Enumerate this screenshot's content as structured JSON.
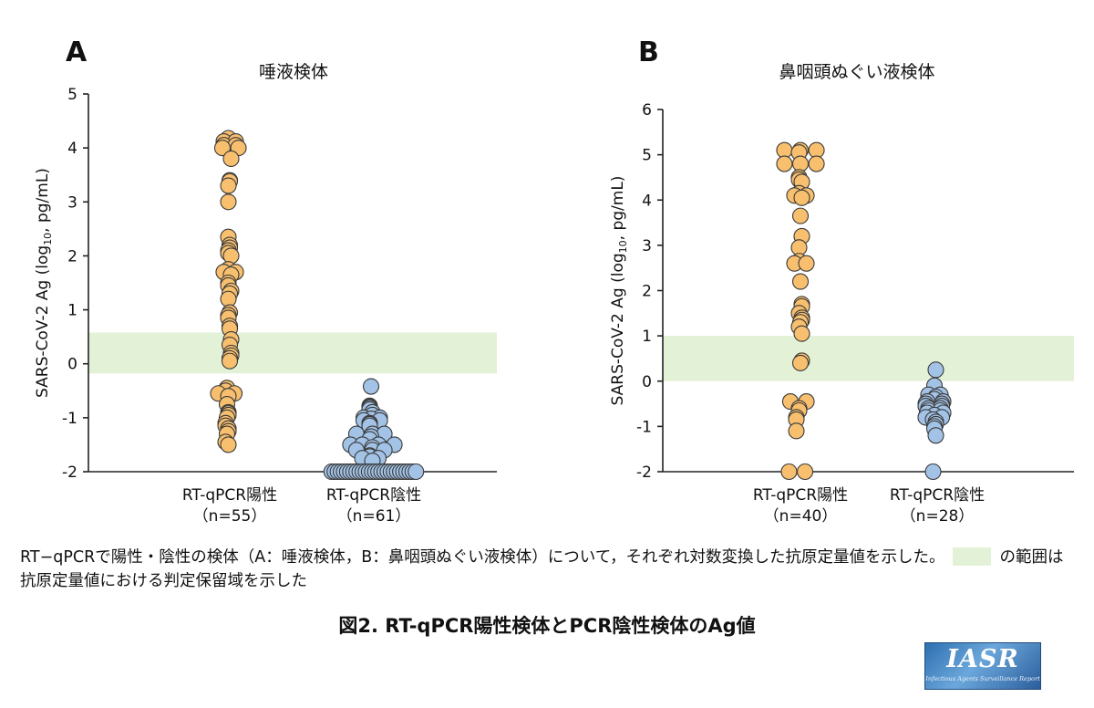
{
  "colors": {
    "positive": "#f7bf6e",
    "negative": "#a3c3e6",
    "border": "#3a3a3a",
    "band": "#e3f1d6"
  },
  "chart_data": [
    {
      "type": "scatter",
      "panel_label": "A",
      "title": "唾液検体",
      "ylabel": "SARS-CoV-2 Ag (log10, pg/mL)",
      "ylim": [
        -2,
        5
      ],
      "yticks": [
        "-2",
        "-1",
        "0",
        "1",
        "2",
        "3",
        "4",
        "5"
      ],
      "band": [
        -0.18,
        0.58
      ],
      "categories": [
        "RT-qPCR陽性",
        "RT-qPCR陰性"
      ],
      "category_counts": [
        "（n=55）",
        "（n=61）"
      ],
      "series": [
        {
          "category": "RT-qPCR陽性",
          "values": [
            4.18,
            4.12,
            4.12,
            4.05,
            4.05,
            4.0,
            4.0,
            3.8,
            3.4,
            3.38,
            3.3,
            3.0,
            2.35,
            2.2,
            2.15,
            2.1,
            2.05,
            2.0,
            1.75,
            1.7,
            1.7,
            1.65,
            1.5,
            1.45,
            1.35,
            1.3,
            1.2,
            0.95,
            0.9,
            0.85,
            0.7,
            0.65,
            0.45,
            0.35,
            0.2,
            0.15,
            0.1,
            0.05,
            -0.45,
            -0.5,
            -0.55,
            -0.55,
            -0.6,
            -0.75,
            -0.9,
            -0.92,
            -0.95,
            -1.0,
            -1.1,
            -1.15,
            -1.2,
            -1.25,
            -1.3,
            -1.45,
            -1.5
          ]
        },
        {
          "category": "RT-qPCR陰性",
          "values": [
            -0.42,
            -0.78,
            -0.8,
            -0.82,
            -0.85,
            -0.9,
            -0.95,
            -1.0,
            -1.0,
            -1.02,
            -1.05,
            -1.05,
            -1.1,
            -1.12,
            -1.15,
            -1.3,
            -1.3,
            -1.3,
            -1.35,
            -1.4,
            -1.5,
            -1.5,
            -1.5,
            -1.5,
            -1.55,
            -1.6,
            -1.6,
            -1.6,
            -1.7,
            -1.72,
            -1.75,
            -1.75,
            -1.8,
            -2.0,
            -2.0,
            -2.0,
            -2.0,
            -2.0,
            -2.0,
            -2.0,
            -2.0,
            -2.0,
            -2.0,
            -2.0,
            -2.0,
            -2.0,
            -2.0,
            -2.0,
            -2.0,
            -2.0,
            -2.0,
            -2.0,
            -2.0,
            -2.0,
            -2.0,
            -2.0,
            -2.0,
            -2.0,
            -2.0,
            -2.0,
            -2.0
          ]
        }
      ]
    },
    {
      "type": "scatter",
      "panel_label": "B",
      "title": "鼻咽頭ぬぐい液検体",
      "ylabel": "SARS-CoV-2 Ag (log10, pg/mL)",
      "ylim": [
        -2,
        6
      ],
      "yticks": [
        "-2",
        "-1",
        "0",
        "1",
        "2",
        "3",
        "4",
        "5",
        "6"
      ],
      "band": [
        0.0,
        1.0
      ],
      "categories": [
        "RT-qPCR陽性",
        "RT-qPCR陰性"
      ],
      "category_counts": [
        "（n=40）",
        "（n=28）"
      ],
      "series": [
        {
          "category": "RT-qPCR陽性",
          "values": [
            5.1,
            5.1,
            5.1,
            5.05,
            4.8,
            4.8,
            4.8,
            4.5,
            4.45,
            4.4,
            4.15,
            4.1,
            4.1,
            4.05,
            3.65,
            3.2,
            2.95,
            2.65,
            2.6,
            2.6,
            2.2,
            1.7,
            1.65,
            1.5,
            1.4,
            1.35,
            1.3,
            1.2,
            1.05,
            0.45,
            0.4,
            -0.45,
            -0.45,
            -0.6,
            -0.65,
            -0.8,
            -0.85,
            -1.1,
            -2.0,
            -2.0
          ]
        },
        {
          "category": "RT-qPCR陰性",
          "values": [
            0.25,
            -0.1,
            -0.3,
            -0.3,
            -0.35,
            -0.4,
            -0.45,
            -0.45,
            -0.5,
            -0.5,
            -0.55,
            -0.55,
            -0.6,
            -0.6,
            -0.65,
            -0.65,
            -0.7,
            -0.7,
            -0.75,
            -0.8,
            -0.8,
            -0.85,
            -0.9,
            -0.95,
            -1.0,
            -1.05,
            -1.2,
            -2.0
          ]
        }
      ]
    }
  ],
  "caption": {
    "text_before": "RT−qPCRで陽性・陰性の検体（A：唾液検体，B：鼻咽頭ぬぐい液検体）について，それぞれ対数変換した抗原定量値を示した。",
    "text_after": "の範囲は抗原定量値における判定保留域を示した"
  },
  "figure_title": "図2. RT-qPCR陽性検体とPCR陰性検体のAg値",
  "logo": {
    "main": "IASR",
    "sub": "Infectious Agents Surveillance Report"
  }
}
